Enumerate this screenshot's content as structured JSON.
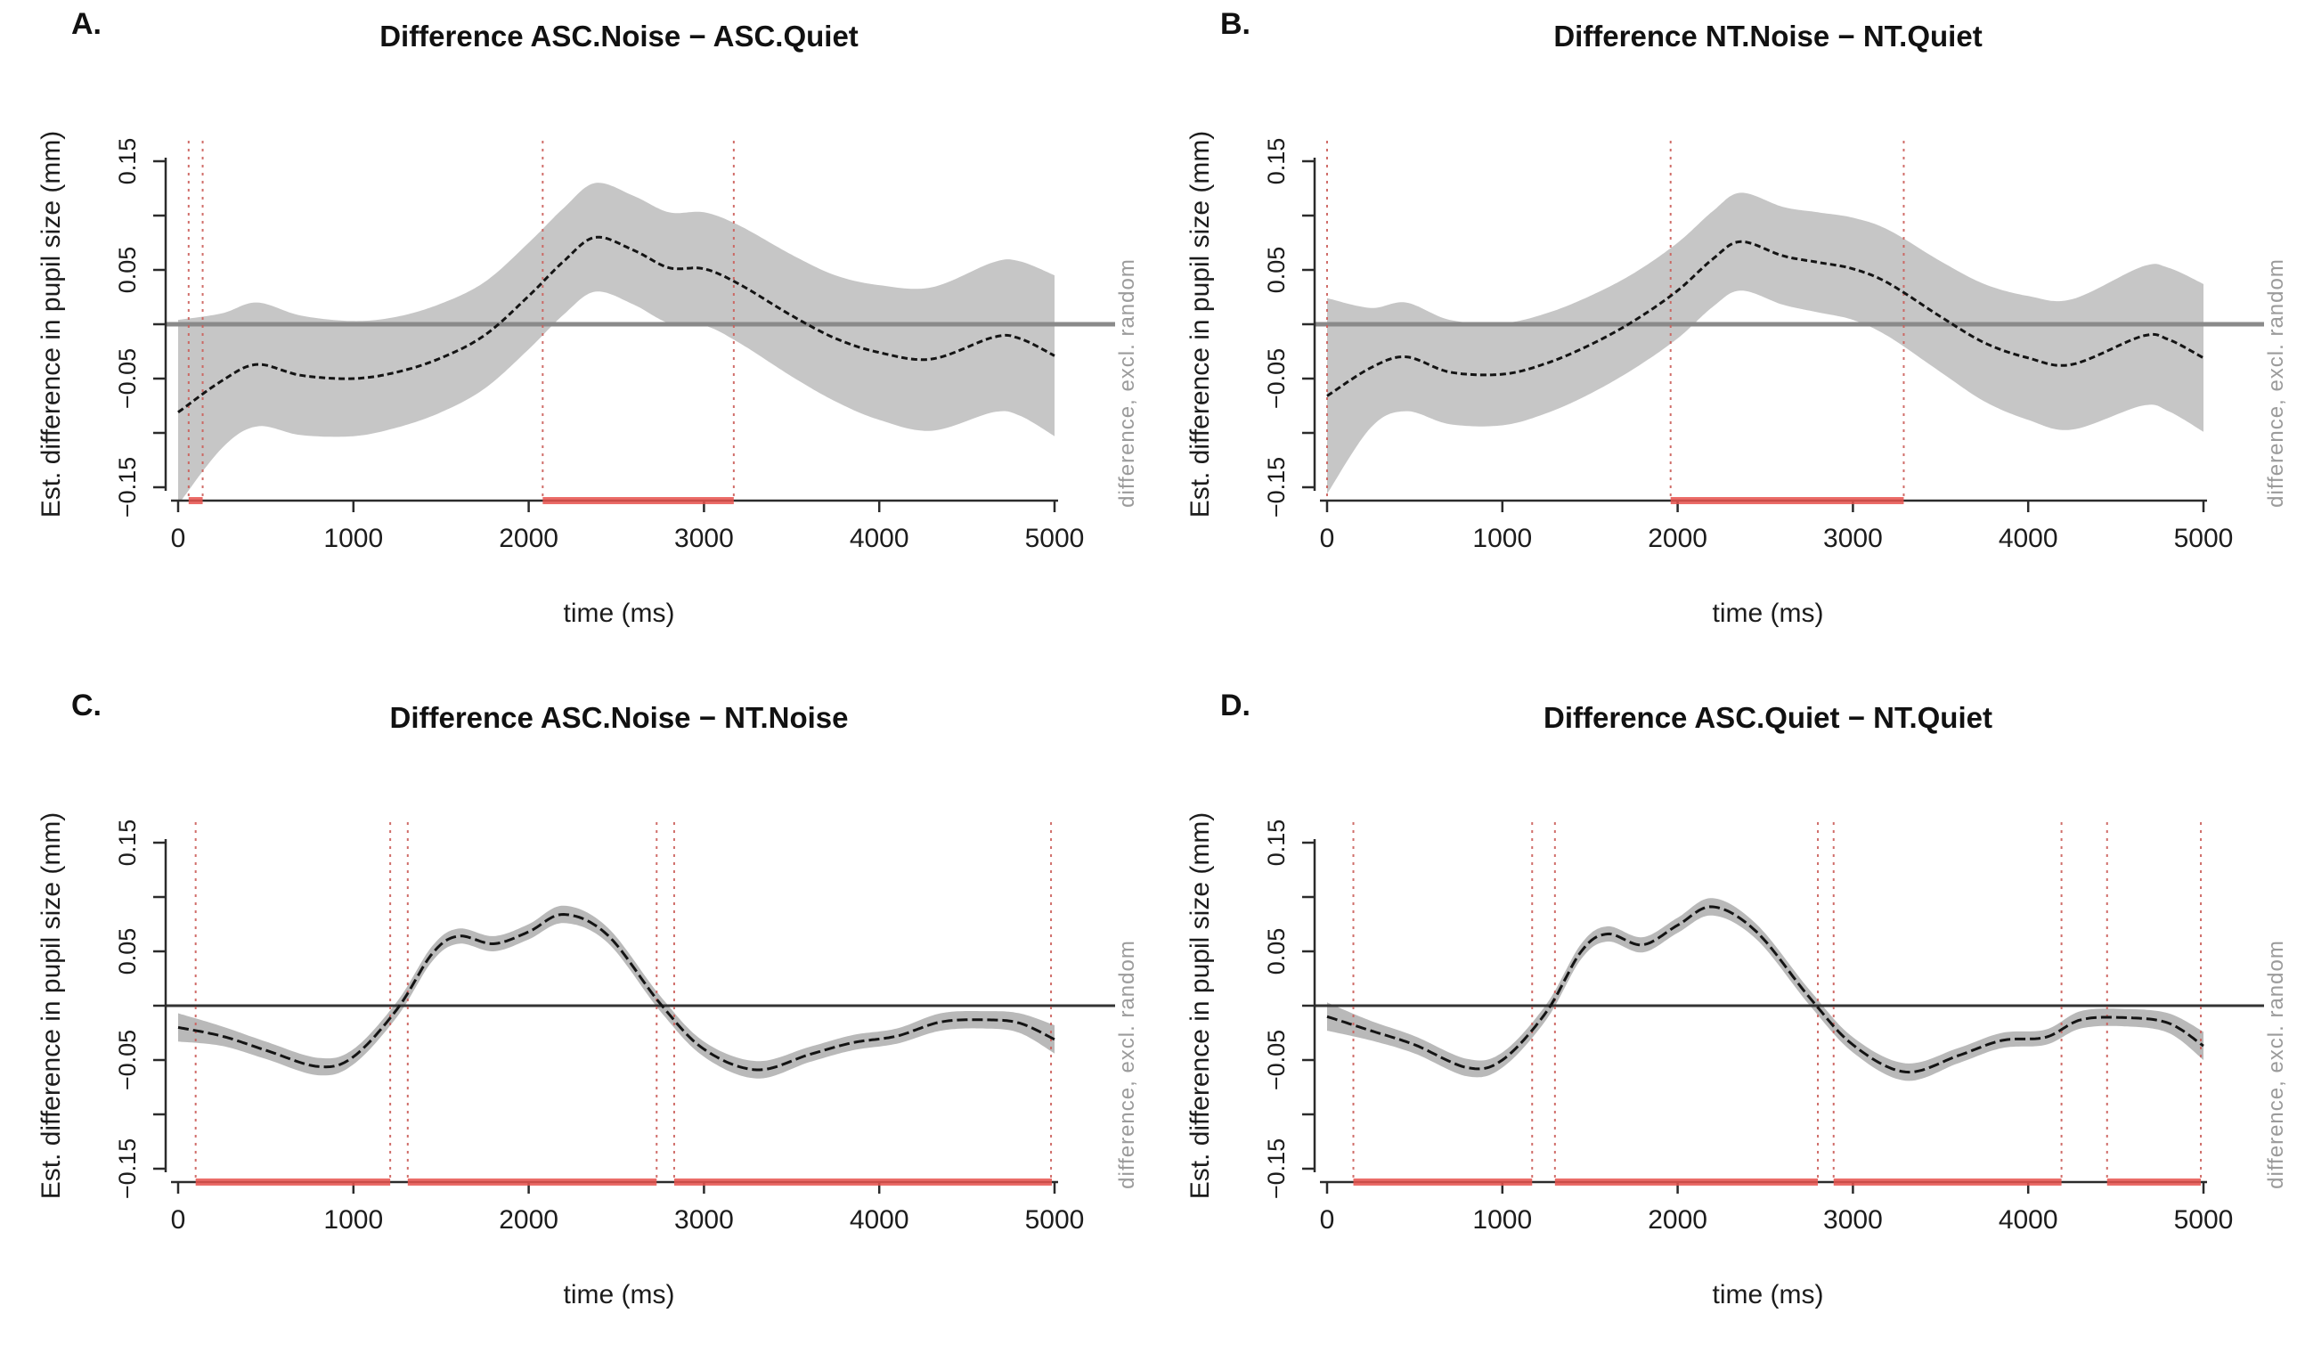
{
  "figure": {
    "background": "#ffffff"
  },
  "shared": {
    "xlabel": "time (ms)",
    "ylabel": "Est. difference in pupil size (mm)",
    "right_label": "difference, excl. random",
    "x_ticks": [
      0,
      1000,
      2000,
      3000,
      4000,
      5000
    ],
    "y_ticks_minor": [
      0.15,
      0.1,
      0.05,
      0,
      -0.05,
      -0.1,
      -0.15
    ],
    "y_tick_labels": [
      {
        "text": "0.15",
        "value": 0.15
      },
      {
        "text": "0.05",
        "value": 0.05
      },
      {
        "text": "−0.05",
        "value": -0.05
      },
      {
        "text": "−0.15",
        "value": -0.15
      }
    ],
    "colors": {
      "band_wide": "#c6c6c6",
      "band_narrow": "#b9b9b9",
      "curve": "#141414",
      "zero_line_gray": "#8a8a8a",
      "zero_line_black": "#333333",
      "sig_vline_red": "#cc5f5a",
      "sig_segment_red": "#e8534e",
      "axis": "#2b2b2b",
      "right_label_gray": "#9b9b9b"
    }
  },
  "chart_data": [
    {
      "type": "line",
      "label": "A.",
      "title": "Difference ASC.Noise − ASC.Quiet",
      "xlabel": "time (ms)",
      "ylabel": "Est. difference in pupil size (mm)",
      "right_label": "difference, excl. random",
      "xlim": [
        0,
        5000
      ],
      "ylim": [
        -0.15,
        0.15
      ],
      "zero_line": "gray",
      "band": "wide",
      "curve_dash": "7 4",
      "series": {
        "name": "estimated difference ASC.Noise - ASC.Quiet",
        "points": [
          [
            0,
            -0.081
          ],
          [
            250,
            -0.052
          ],
          [
            450,
            -0.037
          ],
          [
            700,
            -0.047
          ],
          [
            1000,
            -0.05
          ],
          [
            1250,
            -0.044
          ],
          [
            1500,
            -0.031
          ],
          [
            1750,
            -0.01
          ],
          [
            2000,
            0.026
          ],
          [
            2200,
            0.058
          ],
          [
            2380,
            0.08
          ],
          [
            2600,
            0.068
          ],
          [
            2800,
            0.052
          ],
          [
            3000,
            0.051
          ],
          [
            3200,
            0.037
          ],
          [
            3500,
            0.008
          ],
          [
            3750,
            -0.013
          ],
          [
            4000,
            -0.026
          ],
          [
            4300,
            -0.032
          ],
          [
            4650,
            -0.012
          ],
          [
            4800,
            -0.013
          ],
          [
            5000,
            -0.029
          ]
        ],
        "band_halfwidth": [
          0.085,
          0.062,
          0.057,
          0.055,
          0.053,
          0.051,
          0.05,
          0.049,
          0.049,
          0.049,
          0.05,
          0.05,
          0.051,
          0.052,
          0.054,
          0.056,
          0.058,
          0.062,
          0.066,
          0.069,
          0.071,
          0.074
        ]
      },
      "sig_vlines": [
        60,
        140,
        2080,
        3170
      ],
      "sig_segments": [
        [
          60,
          140
        ],
        [
          2080,
          3170
        ]
      ]
    },
    {
      "type": "line",
      "label": "B.",
      "title": "Difference NT.Noise − NT.Quiet",
      "xlabel": "time (ms)",
      "ylabel": "Est. difference in pupil size (mm)",
      "right_label": "difference, excl. random",
      "xlim": [
        0,
        5000
      ],
      "ylim": [
        -0.15,
        0.15
      ],
      "zero_line": "gray",
      "band": "wide",
      "curve_dash": "7 4",
      "series": {
        "name": "estimated difference NT.Noise - NT.Quiet",
        "points": [
          [
            0,
            -0.066
          ],
          [
            250,
            -0.04
          ],
          [
            450,
            -0.03
          ],
          [
            700,
            -0.044
          ],
          [
            1000,
            -0.046
          ],
          [
            1250,
            -0.036
          ],
          [
            1500,
            -0.019
          ],
          [
            1750,
            0.003
          ],
          [
            2000,
            0.031
          ],
          [
            2200,
            0.06
          ],
          [
            2360,
            0.076
          ],
          [
            2600,
            0.063
          ],
          [
            2800,
            0.057
          ],
          [
            3000,
            0.051
          ],
          [
            3200,
            0.038
          ],
          [
            3500,
            0.007
          ],
          [
            3750,
            -0.017
          ],
          [
            4000,
            -0.031
          ],
          [
            4250,
            -0.037
          ],
          [
            4650,
            -0.011
          ],
          [
            4800,
            -0.014
          ],
          [
            5000,
            -0.031
          ]
        ],
        "band_halfwidth": [
          0.09,
          0.055,
          0.05,
          0.048,
          0.047,
          0.046,
          0.045,
          0.044,
          0.044,
          0.044,
          0.045,
          0.045,
          0.046,
          0.047,
          0.049,
          0.051,
          0.054,
          0.057,
          0.06,
          0.064,
          0.066,
          0.068
        ]
      },
      "sig_vlines": [
        0,
        1960,
        3290
      ],
      "sig_segments": [
        [
          1960,
          3290
        ]
      ]
    },
    {
      "type": "line",
      "label": "C.",
      "title": "Difference ASC.Noise − NT.Noise",
      "xlabel": "time (ms)",
      "ylabel": "Est. difference in pupil size (mm)",
      "right_label": "difference, excl. random",
      "xlim": [
        0,
        5000
      ],
      "ylim": [
        -0.15,
        0.15
      ],
      "zero_line": "black",
      "band": "narrow",
      "curve_dash": "12 5",
      "series": {
        "name": "estimated difference ASC.Noise - NT.Noise",
        "points": [
          [
            0,
            -0.02
          ],
          [
            250,
            -0.028
          ],
          [
            500,
            -0.041
          ],
          [
            800,
            -0.056
          ],
          [
            1000,
            -0.047
          ],
          [
            1250,
            -0.003
          ],
          [
            1450,
            0.048
          ],
          [
            1600,
            0.064
          ],
          [
            1800,
            0.057
          ],
          [
            2000,
            0.068
          ],
          [
            2200,
            0.084
          ],
          [
            2450,
            0.065
          ],
          [
            2750,
            0.002
          ],
          [
            3000,
            -0.04
          ],
          [
            3300,
            -0.059
          ],
          [
            3600,
            -0.045
          ],
          [
            3850,
            -0.034
          ],
          [
            4100,
            -0.028
          ],
          [
            4350,
            -0.015
          ],
          [
            4600,
            -0.013
          ],
          [
            4800,
            -0.016
          ],
          [
            5000,
            -0.031
          ]
        ],
        "band_halfwidth": [
          0.013,
          0.009,
          0.008,
          0.008,
          0.007,
          0.007,
          0.007,
          0.007,
          0.007,
          0.007,
          0.008,
          0.007,
          0.007,
          0.007,
          0.008,
          0.007,
          0.007,
          0.007,
          0.008,
          0.008,
          0.009,
          0.013
        ]
      },
      "sig_vlines": [
        100,
        1210,
        1310,
        2730,
        2830,
        4980
      ],
      "sig_segments": [
        [
          100,
          1210
        ],
        [
          1310,
          2730
        ],
        [
          2830,
          4985
        ]
      ]
    },
    {
      "type": "line",
      "label": "D.",
      "title": "Difference ASC.Quiet − NT.Quiet",
      "xlabel": "time (ms)",
      "ylabel": "Est. difference in pupil size (mm)",
      "right_label": "difference, excl. random",
      "xlim": [
        0,
        5000
      ],
      "ylim": [
        -0.15,
        0.15
      ],
      "zero_line": "black",
      "band": "narrow",
      "curve_dash": "12 5",
      "series": {
        "name": "estimated difference ASC.Quiet - NT.Quiet",
        "points": [
          [
            0,
            -0.01
          ],
          [
            250,
            -0.023
          ],
          [
            500,
            -0.036
          ],
          [
            800,
            -0.057
          ],
          [
            1000,
            -0.05
          ],
          [
            1250,
            -0.006
          ],
          [
            1450,
            0.05
          ],
          [
            1600,
            0.066
          ],
          [
            1800,
            0.056
          ],
          [
            2000,
            0.074
          ],
          [
            2200,
            0.091
          ],
          [
            2450,
            0.068
          ],
          [
            2750,
            0.008
          ],
          [
            3000,
            -0.036
          ],
          [
            3300,
            -0.061
          ],
          [
            3600,
            -0.046
          ],
          [
            3850,
            -0.032
          ],
          [
            4100,
            -0.029
          ],
          [
            4300,
            -0.013
          ],
          [
            4550,
            -0.011
          ],
          [
            4800,
            -0.016
          ],
          [
            5000,
            -0.037
          ]
        ],
        "band_halfwidth": [
          0.013,
          0.009,
          0.008,
          0.008,
          0.007,
          0.007,
          0.007,
          0.007,
          0.007,
          0.007,
          0.008,
          0.007,
          0.007,
          0.007,
          0.008,
          0.007,
          0.007,
          0.007,
          0.008,
          0.008,
          0.009,
          0.013
        ]
      },
      "sig_vlines": [
        150,
        1170,
        1300,
        2800,
        2890,
        4190,
        4450,
        4985
      ],
      "sig_segments": [
        [
          150,
          1170
        ],
        [
          1300,
          2800
        ],
        [
          2890,
          4190
        ],
        [
          4450,
          4985
        ]
      ]
    }
  ]
}
